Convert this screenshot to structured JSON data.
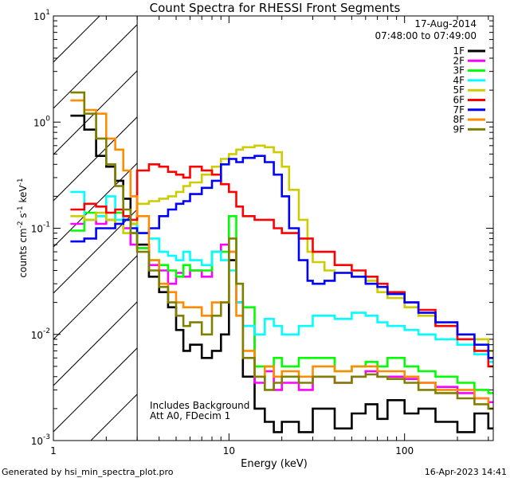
{
  "chart_data": {
    "type": "line",
    "title": "Count Spectra for RHESSI Front Segments",
    "xlabel": "Energy (keV)",
    "ylabel_base": "counts cm",
    "ylabel_exp1": "-2",
    "ylabel_mid": " s",
    "ylabel_exp2": "-1",
    "ylabel_end": " keV",
    "ylabel_exp3": "-1",
    "xscale": "log",
    "yscale": "log",
    "xlim": [
      1,
      320
    ],
    "ylim": [
      0.001,
      10
    ],
    "x_tick_labels": [
      {
        "v": 1,
        "t": "1"
      },
      {
        "v": 10,
        "t": "10"
      },
      {
        "v": 100,
        "t": "100"
      }
    ],
    "y_tick_labels": [
      {
        "v": 10,
        "base": "10",
        "exp": "1"
      },
      {
        "v": 1,
        "base": "10",
        "exp": "0"
      },
      {
        "v": 0.1,
        "base": "10",
        "exp": "-1"
      },
      {
        "v": 0.01,
        "base": "10",
        "exp": "-2"
      },
      {
        "v": 0.001,
        "base": "10",
        "exp": "-3"
      }
    ],
    "shaded_region": {
      "from": 1,
      "to": 3
    },
    "date": "17-Aug-2014",
    "time_range": "07:48:00 to 07:49:00",
    "annotation_line1": "Includes Background",
    "annotation_line2": "Att A0, FDecim 1",
    "series": [
      {
        "name": "1F",
        "color": "#000000",
        "x": [
          1.25,
          1.5,
          1.75,
          2,
          2.25,
          2.5,
          2.75,
          3,
          3.5,
          4,
          4.5,
          5,
          5.5,
          6,
          7,
          8,
          9,
          10,
          11,
          12,
          14,
          16,
          18,
          20,
          25,
          30,
          40,
          50,
          60,
          70,
          80,
          100,
          120,
          150,
          200,
          250,
          300
        ],
        "y": [
          1.15,
          0.85,
          0.48,
          0.38,
          0.28,
          0.19,
          0.11,
          0.07,
          0.035,
          0.025,
          0.018,
          0.011,
          0.007,
          0.008,
          0.006,
          0.007,
          0.01,
          0.05,
          0.02,
          0.004,
          0.002,
          0.0015,
          0.0012,
          0.0015,
          0.0012,
          0.002,
          0.0013,
          0.0018,
          0.0022,
          0.0016,
          0.0024,
          0.0018,
          0.002,
          0.0015,
          0.0012,
          0.0018,
          0.0013
        ]
      },
      {
        "name": "2F",
        "color": "#ff00ff",
        "x": [
          1.25,
          1.5,
          1.75,
          2,
          2.25,
          2.5,
          2.75,
          3,
          3.5,
          4,
          4.5,
          5,
          5.5,
          6,
          7,
          8,
          9,
          10,
          11,
          12,
          14,
          16,
          18,
          20,
          25,
          30,
          40,
          50,
          60,
          70,
          80,
          100,
          120,
          150,
          200,
          250,
          300
        ],
        "y": [
          0.11,
          0.12,
          0.11,
          0.12,
          0.11,
          0.1,
          0.07,
          0.065,
          0.045,
          0.04,
          0.03,
          0.038,
          0.035,
          0.04,
          0.035,
          0.06,
          0.07,
          0.06,
          0.02,
          0.012,
          0.0035,
          0.0045,
          0.003,
          0.0035,
          0.003,
          0.004,
          0.0035,
          0.004,
          0.0045,
          0.004,
          0.004,
          0.0038,
          0.0035,
          0.0032,
          0.0028,
          0.0025,
          0.0023
        ]
      },
      {
        "name": "3F",
        "color": "#00ff00",
        "x": [
          1.25,
          1.5,
          1.75,
          2,
          2.25,
          2.5,
          2.75,
          3,
          3.5,
          4,
          4.5,
          5,
          5.5,
          6,
          7,
          8,
          9,
          10,
          11,
          12,
          14,
          16,
          18,
          20,
          25,
          30,
          40,
          50,
          60,
          70,
          80,
          100,
          120,
          150,
          200,
          250,
          300
        ],
        "y": [
          0.095,
          0.14,
          0.13,
          0.12,
          0.14,
          0.12,
          0.09,
          0.065,
          0.05,
          0.045,
          0.04,
          0.035,
          0.045,
          0.04,
          0.04,
          0.06,
          0.06,
          0.13,
          0.03,
          0.018,
          0.005,
          0.005,
          0.006,
          0.005,
          0.006,
          0.006,
          0.0045,
          0.005,
          0.0055,
          0.005,
          0.006,
          0.005,
          0.0045,
          0.004,
          0.0035,
          0.003,
          0.0028
        ]
      },
      {
        "name": "4F",
        "color": "#00ffff",
        "x": [
          1.25,
          1.5,
          1.75,
          2,
          2.25,
          2.5,
          2.75,
          3,
          3.5,
          4,
          4.5,
          5,
          5.5,
          6,
          7,
          8,
          9,
          10,
          11,
          12,
          14,
          16,
          18,
          20,
          25,
          30,
          40,
          50,
          60,
          70,
          80,
          100,
          120,
          150,
          200,
          250,
          300
        ],
        "y": [
          0.22,
          0.12,
          0.13,
          0.2,
          0.12,
          0.13,
          0.11,
          0.09,
          0.08,
          0.06,
          0.055,
          0.05,
          0.06,
          0.05,
          0.045,
          0.06,
          0.05,
          0.04,
          0.02,
          0.012,
          0.01,
          0.014,
          0.012,
          0.01,
          0.012,
          0.015,
          0.014,
          0.016,
          0.015,
          0.013,
          0.012,
          0.011,
          0.01,
          0.009,
          0.008,
          0.0065,
          0.0055
        ]
      },
      {
        "name": "5F",
        "color": "#cccc00",
        "x": [
          1.25,
          1.5,
          1.75,
          2,
          2.25,
          2.5,
          2.75,
          3,
          3.5,
          4,
          4.5,
          5,
          5.5,
          6,
          7,
          8,
          9,
          10,
          11,
          12,
          14,
          16,
          18,
          20,
          22,
          25,
          28,
          30,
          35,
          40,
          50,
          60,
          70,
          80,
          100,
          120,
          150,
          200,
          250,
          300
        ],
        "y": [
          0.13,
          0.12,
          0.14,
          0.12,
          0.11,
          0.09,
          0.11,
          0.17,
          0.18,
          0.19,
          0.2,
          0.22,
          0.25,
          0.27,
          0.32,
          0.38,
          0.45,
          0.5,
          0.55,
          0.58,
          0.6,
          0.58,
          0.52,
          0.38,
          0.23,
          0.12,
          0.06,
          0.048,
          0.04,
          0.038,
          0.035,
          0.032,
          0.025,
          0.022,
          0.018,
          0.015,
          0.012,
          0.01,
          0.009,
          0.007
        ]
      },
      {
        "name": "6F",
        "color": "#ff0000",
        "x": [
          1.25,
          1.5,
          1.75,
          2,
          2.25,
          2.5,
          2.75,
          3,
          3.5,
          4,
          4.5,
          5,
          5.5,
          6,
          7,
          8,
          9,
          10,
          11,
          12,
          14,
          16,
          18,
          20,
          25,
          30,
          40,
          50,
          60,
          70,
          80,
          100,
          120,
          150,
          200,
          250,
          300
        ],
        "y": [
          0.15,
          0.17,
          0.16,
          0.14,
          0.15,
          0.13,
          0.12,
          0.35,
          0.4,
          0.38,
          0.34,
          0.32,
          0.3,
          0.38,
          0.35,
          0.32,
          0.26,
          0.22,
          0.16,
          0.13,
          0.12,
          0.12,
          0.1,
          0.09,
          0.08,
          0.06,
          0.045,
          0.04,
          0.035,
          0.03,
          0.025,
          0.02,
          0.017,
          0.012,
          0.009,
          0.007,
          0.005
        ]
      },
      {
        "name": "7F",
        "color": "#0000ff",
        "x": [
          1.25,
          1.5,
          1.75,
          2,
          2.25,
          2.5,
          2.75,
          3,
          3.5,
          4,
          4.5,
          5,
          5.5,
          6,
          7,
          8,
          9,
          10,
          11,
          12,
          14,
          16,
          18,
          20,
          22,
          25,
          28,
          30,
          35,
          40,
          50,
          60,
          70,
          80,
          100,
          120,
          150,
          200,
          250,
          300
        ],
        "y": [
          0.075,
          0.08,
          0.1,
          0.1,
          0.11,
          0.12,
          0.1,
          0.09,
          0.1,
          0.13,
          0.15,
          0.17,
          0.18,
          0.21,
          0.24,
          0.28,
          0.4,
          0.45,
          0.42,
          0.46,
          0.48,
          0.42,
          0.32,
          0.2,
          0.1,
          0.05,
          0.032,
          0.03,
          0.032,
          0.038,
          0.035,
          0.03,
          0.028,
          0.024,
          0.02,
          0.016,
          0.013,
          0.01,
          0.008,
          0.006
        ]
      },
      {
        "name": "8F",
        "color": "#ff8c00",
        "x": [
          1.25,
          1.5,
          1.75,
          2,
          2.25,
          2.5,
          2.75,
          3,
          3.5,
          4,
          4.5,
          5,
          5.5,
          6,
          7,
          8,
          9,
          10,
          11,
          12,
          14,
          16,
          18,
          20,
          25,
          30,
          40,
          50,
          60,
          70,
          80,
          100,
          120,
          150,
          200,
          250,
          300
        ],
        "y": [
          1.6,
          1.3,
          1.2,
          0.7,
          0.55,
          0.35,
          0.2,
          0.13,
          0.05,
          0.03,
          0.025,
          0.02,
          0.018,
          0.018,
          0.015,
          0.02,
          0.02,
          0.06,
          0.015,
          0.007,
          0.004,
          0.005,
          0.004,
          0.0045,
          0.004,
          0.005,
          0.0045,
          0.005,
          0.005,
          0.0045,
          0.0045,
          0.004,
          0.0035,
          0.003,
          0.003,
          0.0025,
          0.002
        ]
      },
      {
        "name": "9F",
        "color": "#808000",
        "x": [
          1.25,
          1.5,
          1.75,
          2,
          2.25,
          2.5,
          2.75,
          3,
          3.5,
          4,
          4.5,
          5,
          5.5,
          6,
          7,
          8,
          9,
          10,
          11,
          12,
          14,
          16,
          18,
          20,
          25,
          30,
          40,
          50,
          60,
          70,
          80,
          100,
          120,
          150,
          200,
          250,
          300
        ],
        "y": [
          1.9,
          1.2,
          0.7,
          0.4,
          0.25,
          0.15,
          0.09,
          0.06,
          0.04,
          0.028,
          0.02,
          0.015,
          0.012,
          0.013,
          0.01,
          0.015,
          0.02,
          0.08,
          0.03,
          0.006,
          0.004,
          0.003,
          0.0035,
          0.004,
          0.0035,
          0.004,
          0.0035,
          0.004,
          0.0042,
          0.004,
          0.0038,
          0.0035,
          0.003,
          0.0028,
          0.0025,
          0.0022,
          0.002
        ]
      }
    ]
  },
  "footer": {
    "generated_by": "Generated by hsi_min_spectra_plot.pro",
    "timestamp": "16-Apr-2023 14:41"
  }
}
